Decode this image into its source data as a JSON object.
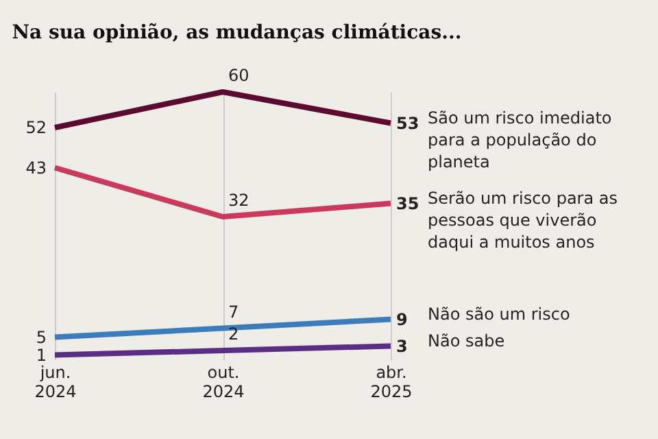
{
  "chart_data": {
    "type": "line",
    "title": "Na sua opinião, as mudanças climáticas...",
    "categories": [
      "jun. 2024",
      "out. 2024",
      "abr. 2025"
    ],
    "series": [
      {
        "name": "São um risco imediato para a população do planeta",
        "color": "#5c0b30",
        "values": [
          52,
          60,
          53
        ]
      },
      {
        "name": "Serão um risco para as pessoas que viverão daqui a muitos anos",
        "color": "#c93a5c",
        "values": [
          43,
          32,
          35
        ]
      },
      {
        "name": "Não são um risco",
        "color": "#3b7cba",
        "values": [
          5,
          7,
          9
        ]
      },
      {
        "name": "Não sabe",
        "color": "#5b2e86",
        "values": [
          1,
          2,
          3
        ]
      }
    ],
    "data_labels": true,
    "grid": "x",
    "legend": false,
    "marker": "none",
    "line_style": "solid"
  }
}
